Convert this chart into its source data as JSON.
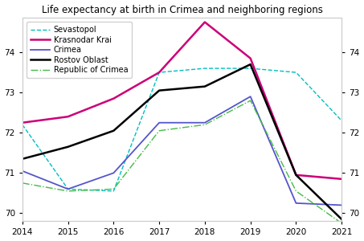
{
  "title": "Life expectancy at birth in Crimea and neighboring regions",
  "years": [
    2014,
    2015,
    2016,
    2017,
    2018,
    2019,
    2020,
    2021
  ],
  "series": [
    {
      "label": "Sevastopol",
      "color": "#00bfbf",
      "linestyle": "--",
      "linewidth": 1.0,
      "values": [
        72.2,
        70.6,
        70.55,
        73.5,
        73.6,
        73.6,
        73.5,
        72.3
      ]
    },
    {
      "label": "Krasnodar Krai",
      "color": "#cc0077",
      "linestyle": "-",
      "linewidth": 1.8,
      "values": [
        72.25,
        72.4,
        72.85,
        73.5,
        74.75,
        73.85,
        70.95,
        70.85
      ]
    },
    {
      "label": "Crimea",
      "color": "#5555cc",
      "linestyle": "-",
      "linewidth": 1.3,
      "values": [
        71.05,
        70.6,
        71.0,
        72.25,
        72.25,
        72.9,
        70.25,
        70.2
      ]
    },
    {
      "label": "Rostov Oblast",
      "color": "#000000",
      "linestyle": "-",
      "linewidth": 1.8,
      "values": [
        71.35,
        71.65,
        72.05,
        73.05,
        73.15,
        73.7,
        70.95,
        69.85
      ]
    },
    {
      "label": "Republic of Crimea",
      "color": "#44bb44",
      "linestyle": "-.",
      "linewidth": 1.0,
      "values": [
        70.75,
        70.55,
        70.6,
        72.05,
        72.2,
        72.8,
        70.55,
        69.75
      ]
    }
  ],
  "xlim": [
    2014,
    2021
  ],
  "ylim": [
    69.8,
    74.85
  ],
  "yticks": [
    70,
    71,
    72,
    73,
    74
  ],
  "xticks": [
    2014,
    2015,
    2016,
    2017,
    2018,
    2019,
    2020,
    2021
  ],
  "background_color": "#ffffff",
  "legend_fontsize": 7.0,
  "title_fontsize": 8.5,
  "tick_labelsize": 7.5
}
